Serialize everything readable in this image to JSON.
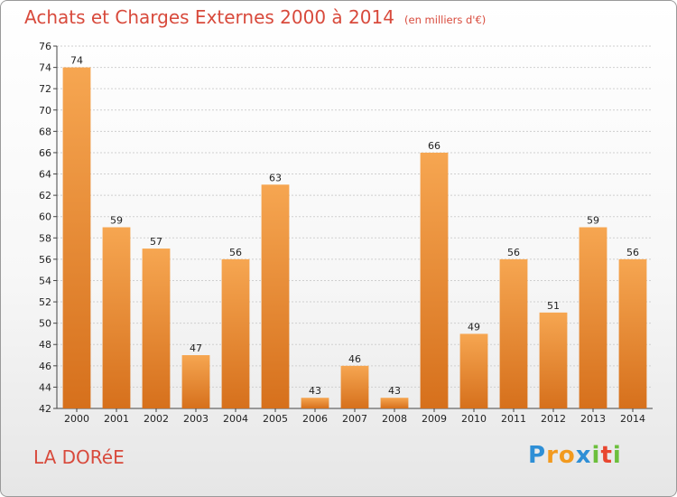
{
  "title": "Achats et Charges Externes 2000 à 2014",
  "unit": "(en milliers d'€)",
  "place": "LA DORéE",
  "logo": {
    "text": "Proxiti",
    "letters": [
      "P",
      "r",
      "o",
      "x",
      "i",
      "t",
      "i"
    ],
    "colors": [
      "#2e8fd6",
      "#f29a1f",
      "#f29a1f",
      "#2e8fd6",
      "#6cbf3c",
      "#e8462f",
      "#6cbf3c"
    ]
  },
  "colors": {
    "accent": "#d84a3c",
    "bar_light": "#f6a651",
    "bar_dark": "#d6701c"
  },
  "chart_data": {
    "type": "bar",
    "categories": [
      "2000",
      "2001",
      "2002",
      "2003",
      "2004",
      "2005",
      "2006",
      "2007",
      "2008",
      "2009",
      "2010",
      "2011",
      "2012",
      "2013",
      "2014"
    ],
    "values": [
      74,
      59,
      57,
      47,
      56,
      63,
      43,
      46,
      43,
      66,
      49,
      56,
      51,
      59,
      56
    ],
    "ylim": [
      42,
      76
    ],
    "yticks": [
      42,
      44,
      46,
      48,
      50,
      52,
      54,
      56,
      58,
      60,
      62,
      64,
      66,
      68,
      70,
      72,
      74,
      76
    ],
    "grid": true
  }
}
